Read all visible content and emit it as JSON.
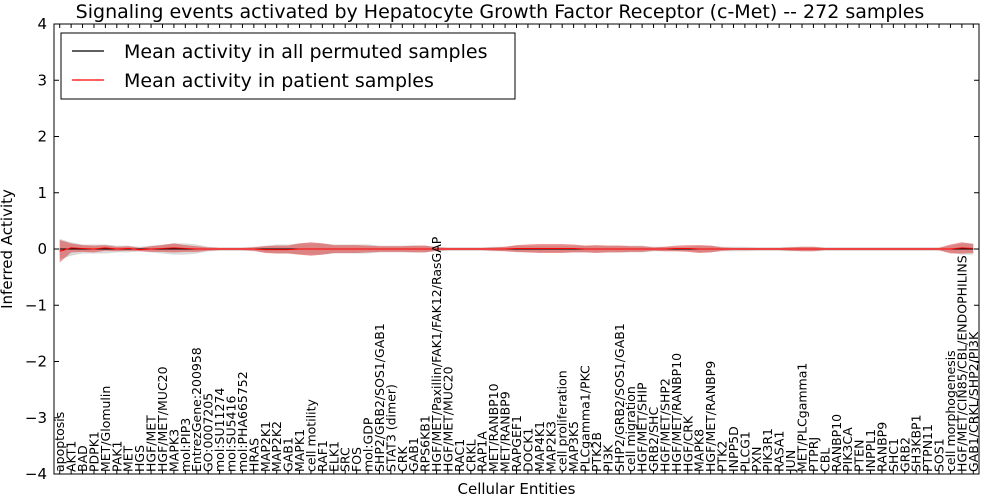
{
  "chart_data": {
    "type": "line",
    "title": "Signaling events activated by Hepatocyte Growth Factor Receptor (c-Met) -- 272 samples",
    "xlabel": "Cellular Entities",
    "ylabel": "Inferred Activity",
    "ylim": [
      -4,
      4
    ],
    "yticks": [
      4,
      3,
      2,
      1,
      0,
      -1,
      -2,
      -3,
      -4
    ],
    "ytick_labels": [
      "4",
      "3",
      "2",
      "1",
      "0",
      "−1",
      "−2",
      "−3",
      "−4"
    ],
    "legend_position": "top-left",
    "categories": [
      "apoptosis",
      "AKT1",
      "BAD",
      "PDPK1",
      "MET/Glomulin",
      "PAK1",
      "MET",
      "HGS",
      "HGF/MET",
      "HGF/MET/MUC20",
      "MAPK3",
      "mol:PIP3",
      "EntrezGene:200958",
      "GO:0007205",
      "mol:SU11274",
      "mol:SU5416",
      "mol:PHA665752",
      "HRAS",
      "MAP2K1",
      "MAP2K2",
      "GAB1",
      "MAPK1",
      "cell motility",
      "RAF1",
      "ELK1",
      "SRC",
      "FOS",
      "mol:GDP",
      "SHP2/GRB2/SOS1/GAB1",
      "STAT3 (dimer)",
      "CRK",
      "GAB1",
      "RPS6KB1",
      "HGF/MET/Paxillin/FAK1/FAK12/RasGAP",
      "HGF/MET/MUC20",
      "RAC1",
      "CRKL",
      "RAP1A",
      "MET/RANBP10",
      "MET/RANBP9",
      "RAPGEF1",
      "DOCK1",
      "MAP4K1",
      "MAP2K3",
      "cell proliferation",
      "MAP3K5",
      "PLCgamma1/PKC",
      "PTK2B",
      "PI3K",
      "SHP2/GRB2/SOS1/GAB1",
      "cell migration",
      "HGF/MET/SHIP",
      "GRB2/SHC",
      "HGF/MET/SHP2",
      "HGF/MET/RANBP10",
      "HGF/CRK",
      "MAPK8",
      "HGF/MET/RANBP9",
      "PTK2",
      "INPP5D",
      "PLCG1",
      "PXN",
      "PIK3R1",
      "RASA1",
      "JUN",
      "MET/PLCgamma1",
      "PTPRJ",
      "CBL",
      "RANBP10",
      "PIK3CA",
      "PTEN",
      "INPPL1",
      "RANBP9",
      "SHC1",
      "GRB2",
      "SH3KBP1",
      "PTPN11",
      "SOS1",
      "cell morphogenesis",
      "HGF/MET/CIN85/CBL/ENDOPHILINS",
      "GAB1/CRKL/SHP2/PI3K"
    ],
    "series": [
      {
        "name": "Mean activity in all permuted samples",
        "color": "#000000",
        "band_color": "#aaaaaa",
        "values": [
          0,
          0,
          0,
          0,
          0,
          0,
          0,
          0,
          0,
          0,
          0,
          0,
          0,
          0,
          0,
          0,
          0,
          0,
          0,
          0,
          0,
          0,
          0,
          0,
          0,
          0,
          0,
          0,
          0,
          0,
          0,
          0,
          0,
          0,
          0,
          0,
          0,
          0,
          0,
          0,
          0,
          0,
          0,
          0,
          0,
          0,
          0,
          0,
          0,
          0,
          0,
          0,
          0,
          0,
          0,
          0,
          0,
          0,
          0,
          0,
          0,
          0,
          0,
          0,
          0,
          0,
          0,
          0,
          0,
          0,
          0,
          0,
          0,
          0,
          0,
          0,
          0,
          0,
          0,
          0,
          0
        ],
        "spread": [
          0.18,
          0.12,
          0.08,
          0.08,
          0.08,
          0.06,
          0.06,
          0.04,
          0.06,
          0.08,
          0.1,
          0.1,
          0.08,
          0.04,
          0.03,
          0.03,
          0.03,
          0.04,
          0.06,
          0.08,
          0.08,
          0.1,
          0.1,
          0.1,
          0.08,
          0.08,
          0.08,
          0.08,
          0.06,
          0.06,
          0.06,
          0.06,
          0.06,
          0.04,
          0.03,
          0.03,
          0.03,
          0.03,
          0.04,
          0.04,
          0.06,
          0.06,
          0.06,
          0.06,
          0.06,
          0.06,
          0.06,
          0.06,
          0.06,
          0.06,
          0.06,
          0.06,
          0.04,
          0.04,
          0.04,
          0.04,
          0.06,
          0.06,
          0.04,
          0.04,
          0.04,
          0.03,
          0.03,
          0.03,
          0.04,
          0.04,
          0.04,
          0.03,
          0.03,
          0.03,
          0.03,
          0.03,
          0.03,
          0.03,
          0.03,
          0.03,
          0.03,
          0.03,
          0.06,
          0.1,
          0.1
        ]
      },
      {
        "name": "Mean activity in patient samples",
        "color": "#ff0000",
        "band_color": "#e03030",
        "values": [
          -0.04,
          0.02,
          0.01,
          0.0,
          0.02,
          0.0,
          0.01,
          -0.01,
          0.0,
          0.01,
          0.02,
          0.01,
          0.0,
          0.0,
          0.0,
          0.0,
          0.0,
          0.0,
          -0.01,
          -0.01,
          -0.01,
          0.0,
          0.0,
          0.0,
          0.0,
          0.0,
          0.0,
          0.0,
          0.0,
          0.0,
          0.0,
          0.0,
          0.0,
          0.0,
          0.0,
          0.0,
          0.0,
          0.0,
          0.0,
          0.0,
          0.01,
          0.01,
          0.01,
          0.01,
          0.01,
          0.01,
          0.0,
          0.0,
          0.0,
          0.0,
          0.0,
          0.0,
          0.0,
          0.0,
          0.01,
          0.01,
          0.0,
          0.0,
          0.0,
          0.0,
          0.0,
          0.0,
          0.0,
          0.0,
          0.0,
          0.0,
          0.0,
          0.0,
          0.0,
          0.0,
          0.0,
          0.0,
          0.0,
          0.0,
          0.0,
          0.0,
          0.0,
          0.0,
          0.0,
          0.02,
          0.01
        ],
        "spread": [
          0.2,
          0.08,
          0.06,
          0.06,
          0.05,
          0.04,
          0.04,
          0.03,
          0.05,
          0.06,
          0.08,
          0.06,
          0.05,
          0.03,
          0.02,
          0.02,
          0.02,
          0.03,
          0.06,
          0.07,
          0.07,
          0.1,
          0.12,
          0.1,
          0.07,
          0.07,
          0.07,
          0.06,
          0.05,
          0.05,
          0.05,
          0.06,
          0.06,
          0.03,
          0.02,
          0.02,
          0.02,
          0.02,
          0.03,
          0.04,
          0.06,
          0.07,
          0.08,
          0.08,
          0.08,
          0.07,
          0.06,
          0.07,
          0.06,
          0.06,
          0.05,
          0.05,
          0.03,
          0.04,
          0.05,
          0.06,
          0.07,
          0.06,
          0.03,
          0.02,
          0.02,
          0.02,
          0.02,
          0.02,
          0.03,
          0.04,
          0.04,
          0.02,
          0.02,
          0.02,
          0.02,
          0.02,
          0.02,
          0.02,
          0.02,
          0.02,
          0.02,
          0.02,
          0.08,
          0.1,
          0.08
        ]
      }
    ]
  }
}
